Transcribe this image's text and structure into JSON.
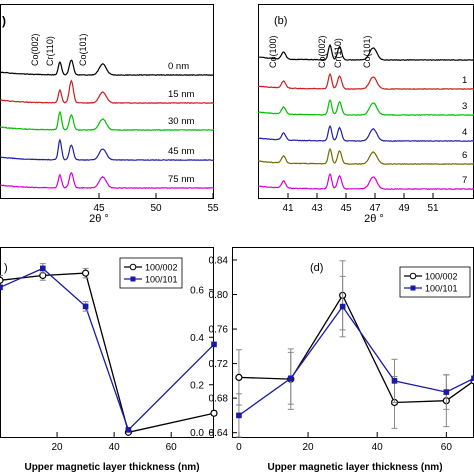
{
  "chart_data": [
    {
      "panel": "(a)",
      "type": "line",
      "xlabel": "2θ °",
      "x_ticks": [
        "45",
        "50",
        "55"
      ],
      "xlim": [
        40,
        55
      ],
      "peak_labels": [
        "Co(002)",
        "Cr(110)",
        "Co(101)"
      ],
      "peak_positions": [
        44.2,
        45.1,
        47.2
      ],
      "series": [
        {
          "name": "75 nm",
          "color": "#d600d6"
        },
        {
          "name": "45 nm",
          "color": "#1f1fa6"
        },
        {
          "name": "30 nm",
          "color": "#00c000"
        },
        {
          "name": "15 nm",
          "color": "#c81e1e"
        },
        {
          "name": "0 nm",
          "color": "#000000"
        }
      ]
    },
    {
      "panel": "(b)",
      "type": "line",
      "xlabel": "2θ °",
      "x_ticks": [
        "41",
        "43",
        "45",
        "47",
        "49",
        "51"
      ],
      "xlim": [
        40,
        53.5
      ],
      "peak_labels": [
        "Co(100)",
        "Co(002)",
        "Cr(110)",
        "Co(101)"
      ],
      "peak_positions": [
        41.6,
        44.5,
        45.1,
        47.2
      ],
      "series": [
        {
          "name": "7",
          "color": "#d600d6"
        },
        {
          "name": "6",
          "color": "#6e6e00"
        },
        {
          "name": "4",
          "color": "#1f1fa6"
        },
        {
          "name": "3",
          "color": "#00c000"
        },
        {
          "name": "1",
          "color": "#c81e1e"
        },
        {
          "name": "",
          "color": "#000000"
        }
      ]
    },
    {
      "panel": "(c)",
      "type": "line",
      "xlabel": "Upper magnetic layer thickness (nm)",
      "x_ticks": [
        "20",
        "40",
        "60"
      ],
      "xlim": [
        0,
        75
      ],
      "y_ticks_right": [
        "0.0",
        "0.2",
        "0.4",
        "0.6"
      ],
      "ylim": [
        -0.02,
        0.78
      ],
      "legend": "top-right",
      "series": [
        {
          "name": "100/002",
          "color": "#000000",
          "marker": "open-circle",
          "x": [
            0,
            15,
            30,
            45,
            75
          ],
          "y": [
            0.64,
            0.66,
            0.67,
            0.0,
            0.08
          ]
        },
        {
          "name": "100/101",
          "color": "#1a1aa8",
          "marker": "filled-square",
          "x": [
            0,
            15,
            30,
            45,
            75
          ],
          "y": [
            0.61,
            0.69,
            0.53,
            0.01,
            0.37
          ]
        }
      ]
    },
    {
      "panel": "(d)",
      "type": "line",
      "xlabel": "Upper magnetic layer thickness (nm)",
      "x_ticks": [
        "0",
        "20",
        "40",
        "60"
      ],
      "xlim": [
        -2,
        68
      ],
      "y_ticks": [
        "0.64",
        "0.68",
        "0.72",
        "0.76",
        "0.80",
        "0.84"
      ],
      "ylim": [
        0.635,
        0.855
      ],
      "legend": "top-right",
      "series": [
        {
          "name": "100/002",
          "color": "#000000",
          "marker": "open-circle",
          "x": [
            0,
            15,
            30,
            45,
            60,
            68
          ],
          "y": [
            0.704,
            0.702,
            0.799,
            0.675,
            0.677,
            0.7
          ]
        },
        {
          "name": "100/101",
          "color": "#1a1aa8",
          "marker": "filled-square",
          "x": [
            0,
            15,
            30,
            45,
            60,
            68
          ],
          "y": [
            0.66,
            0.703,
            0.786,
            0.7,
            0.687,
            0.703
          ]
        }
      ]
    }
  ]
}
